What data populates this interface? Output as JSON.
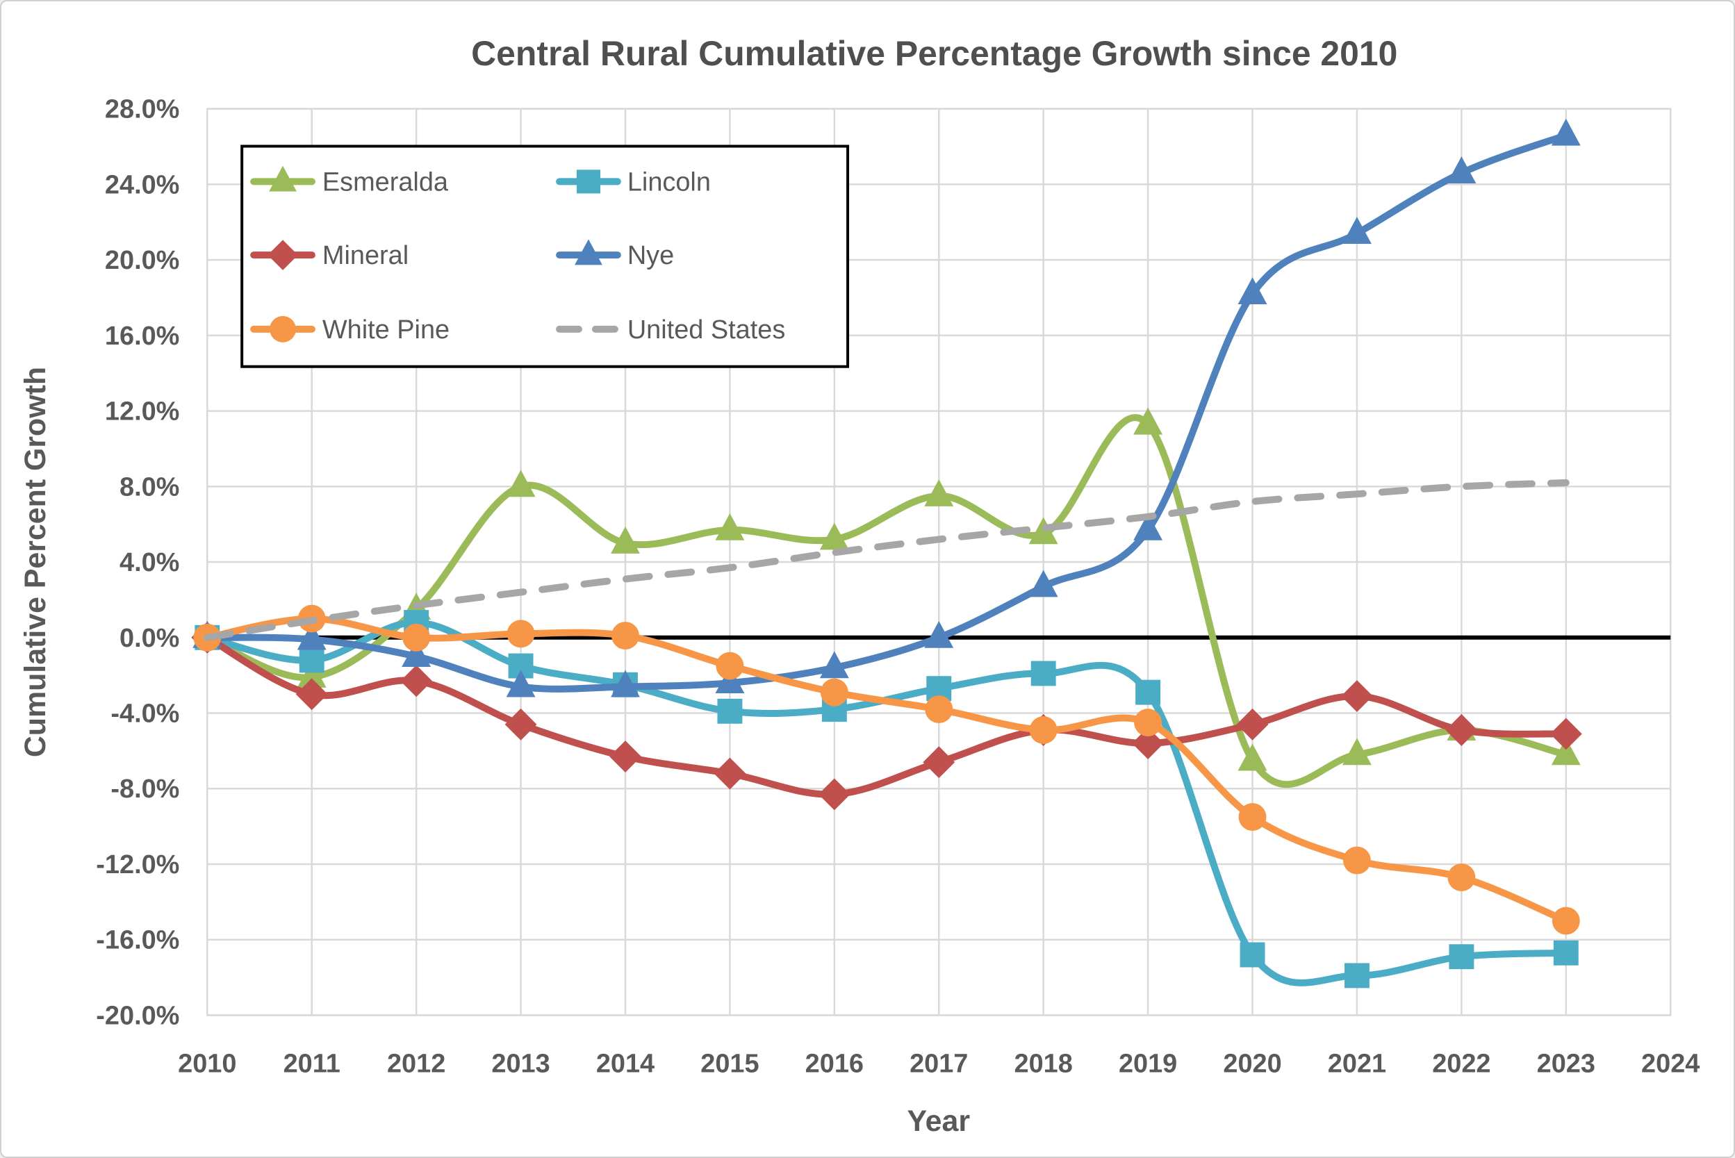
{
  "figure": {
    "title": "Central Rural Cumulative Percentage Growth since 2010",
    "x_axis_title": "Year",
    "y_axis_title": "Cumulative Percent Growth"
  },
  "chart_data": {
    "type": "line",
    "title": "Central Rural Cumulative Percentage Growth since 2010",
    "xlabel": "Year",
    "ylabel": "Cumulative Percent Growth",
    "grid": true,
    "legend_position": "top-left-inside",
    "x": [
      2010,
      2011,
      2012,
      2013,
      2014,
      2015,
      2016,
      2017,
      2018,
      2019,
      2020,
      2021,
      2022,
      2023
    ],
    "x_axis_ticks": [
      2010,
      2011,
      2012,
      2013,
      2014,
      2015,
      2016,
      2017,
      2018,
      2019,
      2020,
      2021,
      2022,
      2023,
      2024
    ],
    "xlim": [
      2010,
      2024
    ],
    "ylim": [
      -20,
      28
    ],
    "ytick_step": 4,
    "ytick_suffix": "%",
    "zero_line_color": "#000000",
    "gridline_color": "#d9d9d9",
    "series": [
      {
        "name": "Esmeralda",
        "color": "#9bbb59",
        "marker": "triangle",
        "line_style": "solid",
        "values": [
          0.0,
          -2.1,
          1.5,
          8.0,
          5.0,
          5.7,
          5.2,
          7.5,
          5.5,
          11.3,
          -6.5,
          -6.2,
          -4.9,
          -6.2
        ]
      },
      {
        "name": "Lincoln",
        "color": "#4bacc6",
        "marker": "square",
        "line_style": "solid",
        "values": [
          0.0,
          -1.2,
          0.8,
          -1.5,
          -2.5,
          -3.9,
          -3.8,
          -2.7,
          -1.9,
          -2.9,
          -16.8,
          -17.9,
          -16.9,
          -16.7
        ]
      },
      {
        "name": "Mineral",
        "color": "#c0504d",
        "marker": "diamond",
        "line_style": "solid",
        "values": [
          0.0,
          -3.0,
          -2.3,
          -4.6,
          -6.3,
          -7.2,
          -8.3,
          -6.6,
          -4.9,
          -5.6,
          -4.6,
          -3.1,
          -4.9,
          -5.1
        ]
      },
      {
        "name": "Nye",
        "color": "#4f81bd",
        "marker": "triangle",
        "line_style": "solid",
        "values": [
          0.0,
          -0.1,
          -1.0,
          -2.6,
          -2.6,
          -2.4,
          -1.6,
          0.0,
          2.7,
          5.7,
          18.2,
          21.4,
          24.6,
          26.6
        ]
      },
      {
        "name": "White Pine",
        "color": "#f79646",
        "marker": "circle",
        "line_style": "solid",
        "values": [
          0.0,
          1.0,
          0.0,
          0.2,
          0.1,
          -1.5,
          -2.9,
          -3.8,
          -4.9,
          -4.5,
          -9.5,
          -11.8,
          -12.7,
          -15.0
        ]
      },
      {
        "name": "United States",
        "color": "#a6a6a6",
        "marker": "none",
        "line_style": "dashed",
        "values": [
          0.0,
          0.9,
          1.7,
          2.4,
          3.1,
          3.7,
          4.5,
          5.2,
          5.8,
          6.4,
          7.2,
          7.6,
          8.0,
          8.2
        ]
      }
    ]
  }
}
